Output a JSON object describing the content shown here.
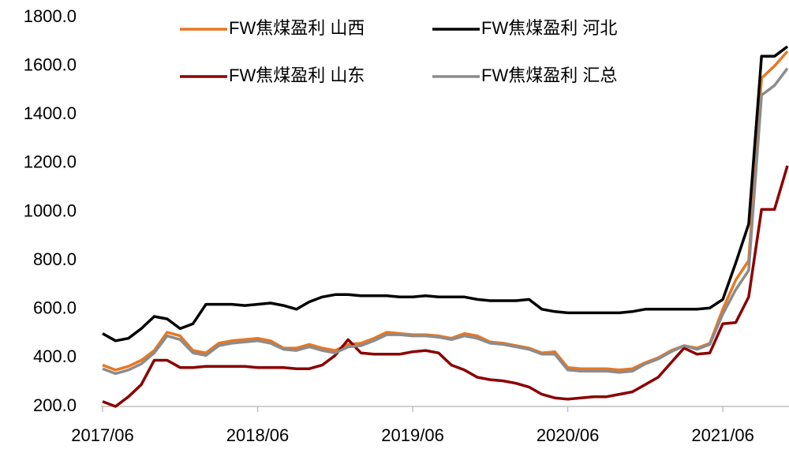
{
  "chart_data": {
    "type": "line",
    "x": [
      "2017/06",
      "2017/07",
      "2017/08",
      "2017/09",
      "2017/10",
      "2017/11",
      "2017/12",
      "2018/01",
      "2018/02",
      "2018/03",
      "2018/04",
      "2018/05",
      "2018/06",
      "2018/07",
      "2018/08",
      "2018/09",
      "2018/10",
      "2018/11",
      "2018/12",
      "2019/01",
      "2019/02",
      "2019/03",
      "2019/04",
      "2019/05",
      "2019/06",
      "2019/07",
      "2019/08",
      "2019/09",
      "2019/10",
      "2019/11",
      "2019/12",
      "2020/01",
      "2020/02",
      "2020/03",
      "2020/04",
      "2020/05",
      "2020/06",
      "2020/07",
      "2020/08",
      "2020/09",
      "2020/10",
      "2020/11",
      "2020/12",
      "2021/01",
      "2021/02",
      "2021/03",
      "2021/04",
      "2021/05",
      "2021/06",
      "2021/07",
      "2021/08",
      "2021/09",
      "2021/10",
      "2021/11"
    ],
    "xticks": [
      "2017/06",
      "2018/06",
      "2019/06",
      "2020/06",
      "2021/06"
    ],
    "ylim": [
      200,
      1800
    ],
    "yticks": [
      {
        "value": 200,
        "label": "200.0"
      },
      {
        "value": 400,
        "label": "400.0"
      },
      {
        "value": 600,
        "label": "600.0"
      },
      {
        "value": 800,
        "label": "800.0"
      },
      {
        "value": 1000,
        "label": "1000.0"
      },
      {
        "value": 1200,
        "label": "1200.0"
      },
      {
        "value": 1400,
        "label": "1400.0"
      },
      {
        "value": 1600,
        "label": "1600.0"
      },
      {
        "value": 1800,
        "label": "1800.0"
      }
    ],
    "grid": false,
    "legend": "top",
    "series": [
      {
        "name": "FW焦煤盈利 山西",
        "color": "#e87722",
        "values": [
          370,
          350,
          365,
          390,
          430,
          505,
          490,
          430,
          420,
          460,
          470,
          475,
          480,
          470,
          440,
          440,
          455,
          440,
          430,
          455,
          460,
          480,
          505,
          500,
          495,
          495,
          490,
          480,
          500,
          490,
          465,
          460,
          450,
          440,
          420,
          425,
          360,
          355,
          355,
          355,
          350,
          355,
          380,
          400,
          430,
          450,
          440,
          460,
          600,
          720,
          800,
          1550,
          1600,
          1660
        ]
      },
      {
        "name": "FW焦煤盈利 河北",
        "color": "#000000",
        "values": [
          500,
          470,
          480,
          520,
          570,
          560,
          520,
          540,
          620,
          620,
          620,
          615,
          620,
          625,
          615,
          600,
          630,
          650,
          660,
          660,
          655,
          655,
          655,
          650,
          650,
          655,
          650,
          650,
          650,
          640,
          635,
          635,
          635,
          640,
          600,
          590,
          585,
          585,
          585,
          585,
          585,
          590,
          600,
          600,
          600,
          600,
          600,
          605,
          640,
          790,
          950,
          1640,
          1640,
          1680
        ]
      },
      {
        "name": "FW焦煤盈利 山东",
        "color": "#8b0000",
        "values": [
          220,
          200,
          240,
          290,
          390,
          390,
          360,
          360,
          365,
          365,
          365,
          365,
          360,
          360,
          360,
          355,
          355,
          370,
          410,
          475,
          420,
          415,
          415,
          415,
          425,
          430,
          420,
          370,
          350,
          320,
          310,
          305,
          295,
          280,
          250,
          235,
          230,
          235,
          240,
          240,
          250,
          260,
          290,
          320,
          380,
          440,
          415,
          420,
          540,
          545,
          650,
          1010,
          1010,
          1190
        ]
      },
      {
        "name": "FW焦煤盈利 汇总",
        "color": "#8c8c8c",
        "values": [
          355,
          335,
          350,
          375,
          420,
          490,
          475,
          420,
          410,
          450,
          460,
          465,
          470,
          460,
          435,
          430,
          445,
          430,
          420,
          445,
          450,
          470,
          495,
          495,
          490,
          490,
          485,
          475,
          490,
          480,
          460,
          455,
          445,
          435,
          415,
          415,
          350,
          345,
          345,
          345,
          340,
          345,
          375,
          395,
          425,
          450,
          435,
          455,
          580,
          680,
          760,
          1480,
          1520,
          1590
        ]
      }
    ]
  }
}
